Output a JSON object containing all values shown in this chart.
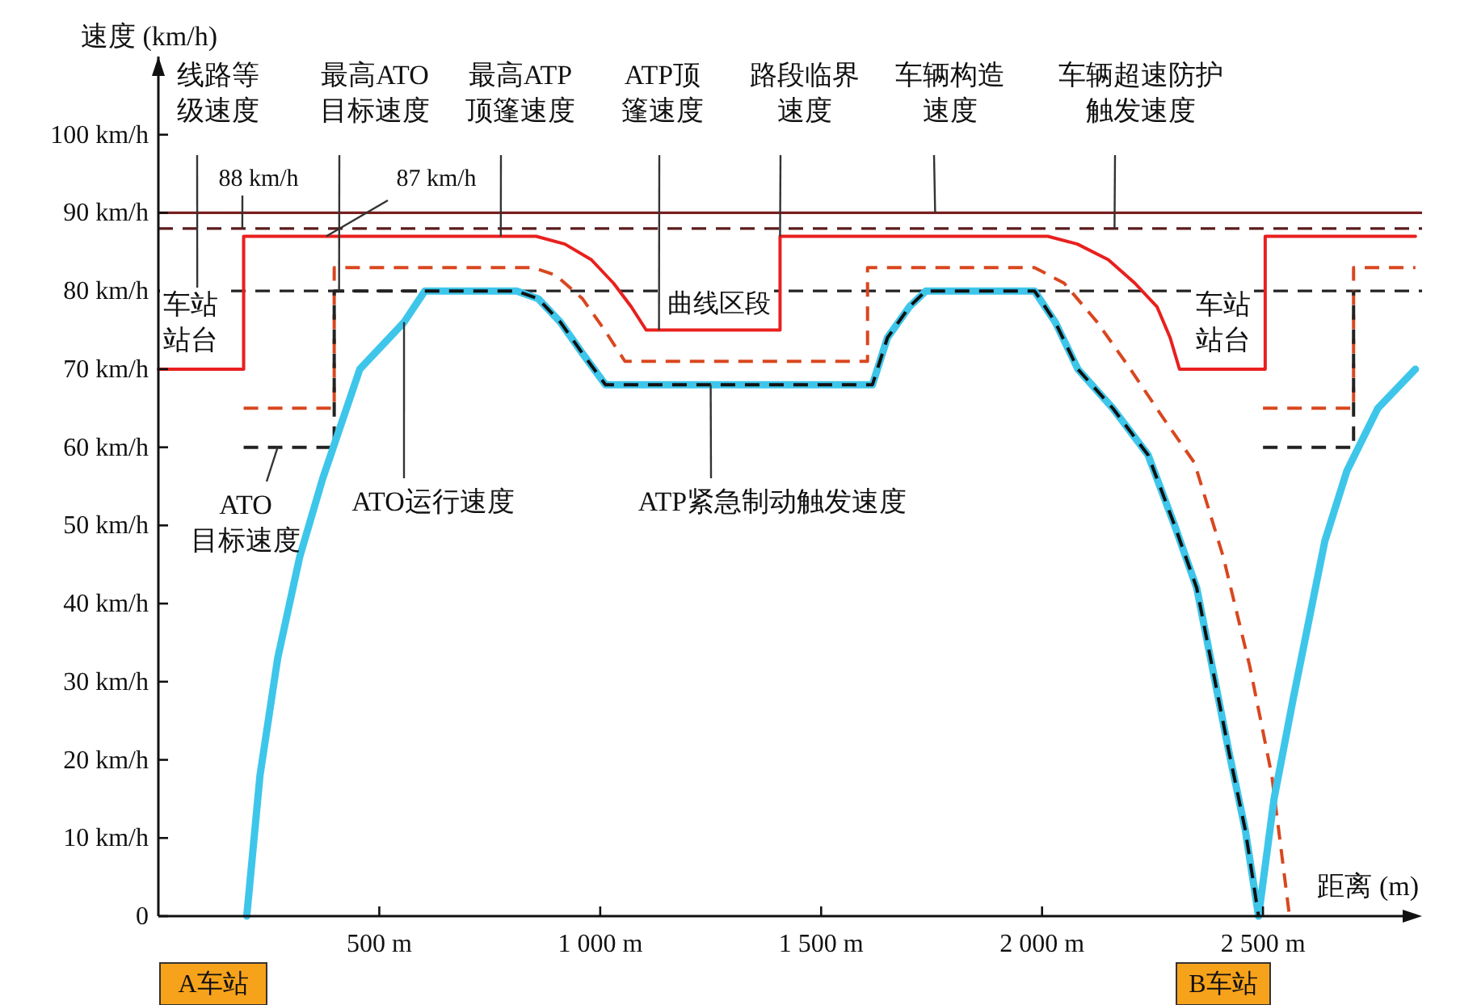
{
  "chart_data": {
    "type": "line",
    "xlabel": "距离 (m)",
    "ylabel": "速度 (km/h)",
    "xlim": [
      0,
      2860
    ],
    "ylim": [
      0,
      110
    ],
    "xticks": [
      {
        "value": 500,
        "label": "500 m"
      },
      {
        "value": 1000,
        "label": "1 000 m"
      },
      {
        "value": 1500,
        "label": "1 500 m"
      },
      {
        "value": 2000,
        "label": "2 000 m"
      },
      {
        "value": 2500,
        "label": "2 500 m"
      }
    ],
    "yticks": [
      0,
      {
        "value": 10,
        "label": "10 km/h"
      },
      {
        "value": 20,
        "label": "20 km/h"
      },
      {
        "value": 30,
        "label": "30 km/h"
      },
      {
        "value": 40,
        "label": "40 km/h"
      },
      {
        "value": 50,
        "label": "50 km/h"
      },
      {
        "value": 60,
        "label": "60 km/h"
      },
      {
        "value": 70,
        "label": "70 km/h"
      },
      {
        "value": 80,
        "label": "80 km/h"
      },
      {
        "value": 90,
        "label": "90 km/h"
      },
      {
        "value": 100,
        "label": "100 km/h"
      }
    ],
    "grid": false,
    "marker": "none",
    "ref_lines": [
      {
        "axis": "y",
        "value": 90,
        "color": "#7a1f1f",
        "line_style": "solid"
      },
      {
        "axis": "y",
        "value": 88,
        "color": "#5a1a1a",
        "line_style": "dashed"
      },
      {
        "axis": "y",
        "value": 80,
        "color": "#222222",
        "line_style": "dashed"
      }
    ],
    "series": [
      {
        "color": "#e8201e",
        "line_style": "solid",
        "x": [
          0,
          193,
          193,
          855,
          920,
          980,
          1030,
          1070,
          1104,
          1407,
          1407,
          2013,
          2080,
          2150,
          2210,
          2260,
          2290,
          2311,
          2505,
          2505,
          2845
        ],
        "values": [
          70,
          70,
          87,
          87,
          86,
          84,
          81,
          78,
          75,
          75,
          87,
          87,
          86,
          84,
          81,
          78,
          74,
          70,
          70,
          87,
          87
        ]
      },
      {
        "color": "#d9471f",
        "line_style": "dashed",
        "x": [
          193,
          398,
          398,
          848,
          900,
          960,
          1010,
          1056,
          1605,
          1605,
          1983,
          2050,
          2125,
          2200,
          2271,
          2345,
          2410,
          2470,
          2520,
          2560
        ],
        "values": [
          65,
          65,
          83,
          83,
          82,
          79,
          75,
          71,
          71,
          83,
          83,
          81,
          76,
          70,
          64,
          58,
          46,
          32,
          18,
          0
        ]
      },
      {
        "color": "#d9471f",
        "line_style": "dashed",
        "x": [
          2500,
          2705,
          2705,
          2845
        ],
        "values": [
          65,
          65,
          83,
          83
        ]
      },
      {
        "color": "#222222",
        "line_style": "dashed",
        "x": [
          193,
          398,
          398,
          603
        ],
        "values": [
          60,
          60,
          80,
          80
        ]
      },
      {
        "color": "#222222",
        "line_style": "dashed",
        "x": [
          2500,
          2705,
          2705
        ],
        "values": [
          60,
          60,
          80
        ]
      },
      {
        "color": "#3ec6ea",
        "line_style": "solid",
        "x": [
          200,
          230,
          270,
          320,
          372,
          456,
          556,
          603,
          811,
          860,
          910,
          960,
          1012,
          1616,
          1650,
          1700,
          1737,
          1983,
          2030,
          2081,
          2160,
          2240,
          2300,
          2350,
          2423,
          2460,
          2490,
          2525,
          2569,
          2640,
          2690,
          2760,
          2845
        ],
        "values": [
          0,
          18,
          33,
          46,
          56,
          70,
          76,
          80,
          80,
          79,
          76,
          72,
          68,
          68,
          74,
          78,
          80,
          80,
          76,
          70,
          65,
          59,
          50,
          42,
          21,
          11,
          0,
          15,
          28,
          48,
          57,
          65,
          70
        ]
      },
      {
        "color": "#111111",
        "line_style": "dashed",
        "x": [
          603,
          811,
          860,
          910,
          960,
          1012,
          1616,
          1650,
          1700,
          1737,
          1983,
          2030,
          2081,
          2160,
          2240,
          2300,
          2350,
          2423,
          2460,
          2490
        ],
        "values": [
          80,
          80,
          79,
          76,
          72,
          68,
          68,
          74,
          78,
          80,
          80,
          76,
          70,
          65,
          59,
          50,
          42,
          21,
          11,
          0
        ]
      }
    ],
    "annotations": [
      {
        "text": "线路等级速度",
        "x": 88,
        "y": 80
      },
      {
        "text": "最高ATO目标速度",
        "x": 409,
        "y": 80
      },
      {
        "text": "最高ATP顶篷速度",
        "x": 775,
        "y": 87
      },
      {
        "text": "ATP顶篷速度",
        "x": 1133,
        "y": 75
      },
      {
        "text": "路段临界速度",
        "x": 1407,
        "y": 87
      },
      {
        "text": "车辆构造速度",
        "x": 1758,
        "y": 90
      },
      {
        "text": "车辆超速防护触发速度",
        "x": 2164,
        "y": 88
      },
      {
        "text": "88 km/h",
        "x": 190,
        "y": 88
      },
      {
        "text": "87 km/h",
        "x": 380,
        "y": 87
      },
      "车站站台",
      "曲线区段",
      "车站站台",
      {
        "text": "ATO目标速度",
        "x": 270,
        "y": 60
      },
      {
        "text": "ATO运行速度",
        "x": 556,
        "y": 76
      },
      {
        "text": "ATP紧急制动触发速度",
        "x": 1250,
        "y": 68
      },
      "A车站",
      "B车站"
    ]
  }
}
